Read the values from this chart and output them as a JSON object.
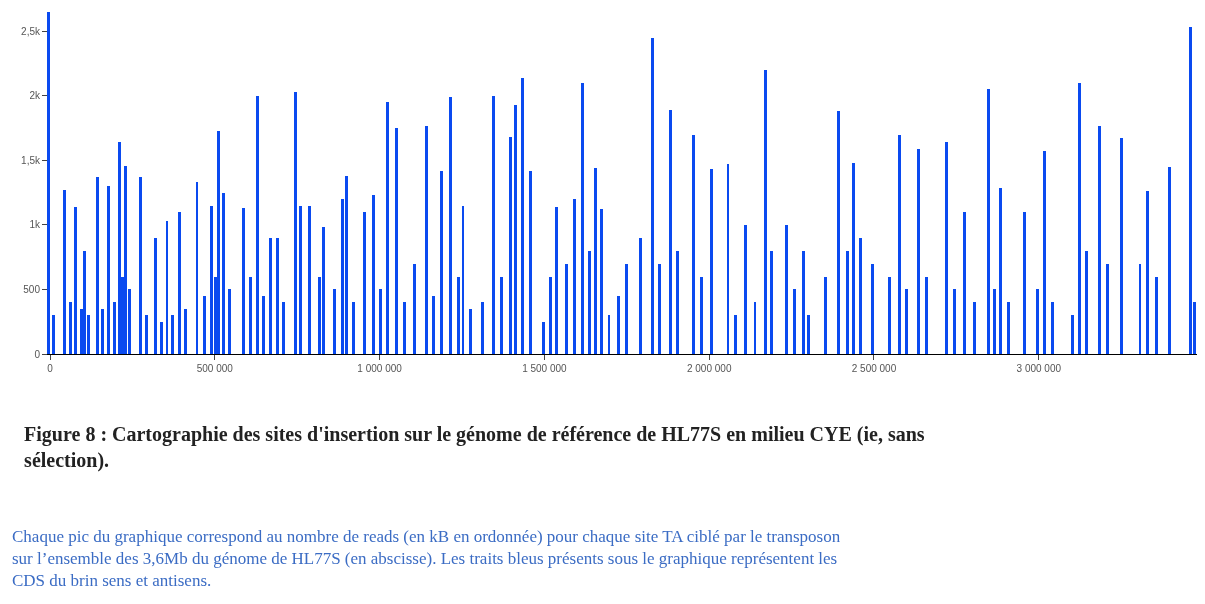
{
  "chart_data": {
    "type": "bar",
    "title": "Figure 8 : Cartographie des sites d'insertion sur le génome de référence de HL77S en milieu CYE (ie, sans sélection).",
    "annotations": [
      "Chaque pic du graphique correspond au nombre de reads (en kB en ordonnée) pour chaque site TA ciblé par le transposon sur l’ensemble des 3,6Mb du génome de HL77S (en abscisse). Les traits bleus présents sous le graphique représentent les CDS du brin sens et antisens."
    ],
    "x": [
      12000,
      44000,
      62000,
      77000,
      95000,
      106000,
      118000,
      145000,
      160000,
      177000,
      195000,
      210000,
      219000,
      228000,
      242000,
      275000,
      293000,
      319000,
      337000,
      355000,
      372000,
      393000,
      411000,
      446000,
      470000,
      491000,
      502000,
      511000,
      526000,
      544000,
      588000,
      609000,
      629000,
      647000,
      668000,
      691000,
      709000,
      745000,
      759000,
      786000,
      804000,
      819000,
      830000,
      839000,
      854000,
      863000,
      887000,
      901000,
      922000,
      954000,
      981000,
      1002000,
      1025000,
      1052000,
      1076000,
      1105000,
      1141000,
      1164000,
      1188000,
      1215000,
      1238000,
      1253000,
      1277000,
      1291000,
      1312000,
      1345000,
      1371000,
      1398000,
      1412000,
      1433000,
      1457000,
      1480000,
      1498000,
      1519000,
      1537000,
      1566000,
      1590000,
      1616000,
      1637000,
      1655000,
      1673000,
      1696000,
      1708000,
      1726000,
      1749000,
      1767000,
      1791000,
      1829000,
      1850000,
      1882000,
      1903000,
      1953000,
      1977000,
      2006000,
      2027000,
      2057000,
      2080000,
      2110000,
      2139000,
      2172000,
      2190000,
      2207000,
      2234000,
      2258000,
      2287000,
      2302000,
      2334000,
      2352000,
      2391000,
      2420000,
      2438000,
      2459000,
      2476000,
      2494000,
      2524000,
      2547000,
      2577000,
      2600000,
      2636000,
      2660000,
      2719000,
      2745000,
      2775000,
      2804000,
      2846000,
      2866000,
      2884000,
      2908000,
      2958000,
      2996000,
      3017000,
      3041000,
      3085000,
      3103000,
      3123000,
      3144000,
      3165000,
      3185000,
      3209000,
      3251000,
      3271000,
      3286000,
      3307000,
      3330000,
      3357000,
      3398000,
      3434000,
      3459000,
      3472000
    ],
    "values": [
      300,
      1270,
      400,
      1140,
      350,
      800,
      300,
      1370,
      350,
      1300,
      400,
      1640,
      600,
      1460,
      500,
      1370,
      300,
      900,
      250,
      1030,
      300,
      1100,
      350,
      1330,
      450,
      1150,
      600,
      1730,
      1250,
      500,
      1130,
      600,
      2000,
      450,
      900,
      900,
      400,
      2030,
      1150,
      1150,
      null,
      600,
      985,
      0,
      0,
      500,
      1200,
      1380,
      400,
      1100,
      1230,
      500,
      1950,
      1750,
      400,
      700,
      1770,
      450,
      1420,
      1990,
      600,
      1150,
      350,
      0,
      400,
      2000,
      600,
      1680,
      1930,
      2140,
      1420,
      0,
      250,
      600,
      1140,
      700,
      1200,
      2100,
      800,
      1440,
      1120,
      300,
      0,
      450,
      700,
      null,
      900,
      2450,
      700,
      1890,
      800,
      1700,
      600,
      1430,
      null,
      1470,
      300,
      1000,
      400,
      2200,
      800,
      null,
      1000,
      500,
      800,
      300,
      null,
      600,
      1880,
      800,
      1480,
      900,
      null,
      700,
      null,
      600,
      1700,
      500,
      1590,
      600,
      1640,
      500,
      1100,
      400,
      2050,
      500,
      1290,
      400,
      1100,
      500,
      1570,
      400,
      0,
      300,
      2100,
      800,
      null,
      1770,
      700,
      1670,
      0,
      0,
      700,
      1260,
      600,
      1450,
      null,
      2530,
      400
    ],
    "color": "#0a4af0",
    "xlim": [
      0,
      3480000
    ],
    "xticks": [
      {
        "value": 0,
        "label": "0"
      },
      {
        "value": 500000,
        "label": "500 000"
      },
      {
        "value": 1000000,
        "label": "1 000 000"
      },
      {
        "value": 1500000,
        "label": "1 500 000"
      },
      {
        "value": 2000000,
        "label": "2 000 000"
      },
      {
        "value": 2500000,
        "label": "2 500 000"
      },
      {
        "value": 3000000,
        "label": "3 000 000"
      }
    ],
    "ylim": [
      0,
      2650
    ],
    "yticks": [
      0,
      500,
      {
        "value": 1000,
        "label": "1k"
      },
      {
        "value": 1500,
        "label": "1,5k"
      },
      {
        "value": 2000,
        "label": "2k"
      },
      {
        "value": 2500,
        "label": "2,5k"
      }
    ]
  }
}
